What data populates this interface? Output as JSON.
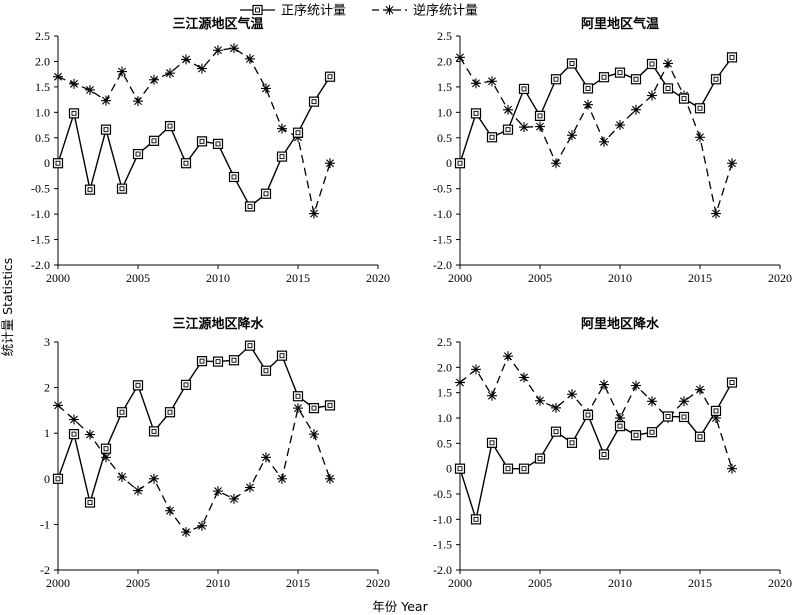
{
  "legend": {
    "forward_label": "正序统计量",
    "backward_label": "逆序统计量"
  },
  "axes": {
    "xlabel": "年份 Year",
    "ylabel": "统计量 Statistics"
  },
  "chart_data": [
    {
      "type": "line",
      "title": "三江源地区气温",
      "xlim": [
        2000,
        2020
      ],
      "ylim": [
        -2.0,
        2.5
      ],
      "xticks": [
        2000,
        2005,
        2010,
        2015,
        2020
      ],
      "yticks": [
        -2.0,
        -1.5,
        -1.0,
        -0.5,
        0,
        0.5,
        1.0,
        1.5,
        2.0,
        2.5
      ],
      "ytick_labels": [
        "-2.0",
        "-1.5",
        "-1.0",
        "-0.5",
        "0",
        "0.5",
        "1.0",
        "1.5",
        "2.0",
        "2.5"
      ],
      "x": [
        2000,
        2001,
        2002,
        2003,
        2004,
        2005,
        2006,
        2007,
        2008,
        2009,
        2010,
        2011,
        2012,
        2013,
        2014,
        2015,
        2016,
        2017
      ],
      "series": [
        {
          "name": "正序统计量",
          "values": [
            0,
            0.98,
            -0.52,
            0.66,
            -0.5,
            0.18,
            0.44,
            0.73,
            0,
            0.43,
            0.38,
            -0.27,
            -0.85,
            -0.6,
            0.13,
            0.6,
            1.21,
            1.7
          ]
        },
        {
          "name": "逆序统计量",
          "values": [
            1.7,
            1.56,
            1.44,
            1.23,
            1.8,
            1.22,
            1.64,
            1.77,
            2.04,
            1.86,
            2.22,
            2.26,
            2.05,
            1.47,
            0.68,
            0.51,
            -0.99,
            0
          ]
        }
      ]
    },
    {
      "type": "line",
      "title": "阿里地区气温",
      "xlim": [
        2000,
        2020
      ],
      "ylim": [
        -2.0,
        2.5
      ],
      "xticks": [
        2000,
        2005,
        2010,
        2015,
        2020
      ],
      "yticks": [
        -2.0,
        -1.5,
        -1.0,
        -0.5,
        0,
        0.5,
        1.0,
        1.5,
        2.0,
        2.5
      ],
      "ytick_labels": [
        "-2.0",
        "-1.5",
        "-1.0",
        "-0.5",
        "0",
        "0.5",
        "1.0",
        "1.5",
        "2.0",
        "2.5"
      ],
      "x": [
        2000,
        2001,
        2002,
        2003,
        2004,
        2005,
        2006,
        2007,
        2008,
        2009,
        2010,
        2011,
        2012,
        2013,
        2014,
        2015,
        2016,
        2017
      ],
      "series": [
        {
          "name": "正序统计量",
          "values": [
            0,
            0.98,
            0.51,
            0.66,
            1.46,
            0.93,
            1.65,
            1.96,
            1.47,
            1.69,
            1.78,
            1.65,
            1.95,
            1.47,
            1.27,
            1.08,
            1.65,
            2.08
          ]
        },
        {
          "name": "逆序统计量",
          "values": [
            2.08,
            1.57,
            1.61,
            1.05,
            0.71,
            0.72,
            0,
            0.55,
            1.15,
            0.42,
            0.75,
            1.05,
            1.33,
            1.96,
            1.33,
            0.51,
            -0.99,
            0
          ]
        }
      ]
    },
    {
      "type": "line",
      "title": "三江源地区降水",
      "xlim": [
        2000,
        2020
      ],
      "ylim": [
        -2,
        3
      ],
      "xticks": [
        2000,
        2005,
        2010,
        2015,
        2020
      ],
      "yticks": [
        -2,
        -1,
        0,
        1,
        2,
        3
      ],
      "ytick_labels": [
        "-2",
        "-1",
        "0",
        "1",
        "2",
        "3"
      ],
      "x": [
        2000,
        2001,
        2002,
        2003,
        2004,
        2005,
        2006,
        2007,
        2008,
        2009,
        2010,
        2011,
        2012,
        2013,
        2014,
        2015,
        2016,
        2017
      ],
      "series": [
        {
          "name": "正序统计量",
          "values": [
            0,
            0.98,
            -0.52,
            0.66,
            1.46,
            2.05,
            1.04,
            1.46,
            2.06,
            2.58,
            2.57,
            2.6,
            2.92,
            2.37,
            2.7,
            1.81,
            1.55,
            1.61
          ]
        },
        {
          "name": "逆序统计量",
          "values": [
            1.61,
            1.3,
            0.97,
            0.47,
            0.04,
            -0.26,
            0,
            -0.7,
            -1.17,
            -1.03,
            -0.27,
            -0.44,
            -0.19,
            0.47,
            0,
            1.55,
            0.98,
            0
          ]
        }
      ]
    },
    {
      "type": "line",
      "title": "阿里地区降水",
      "xlim": [
        2000,
        2020
      ],
      "ylim": [
        -2.0,
        2.5
      ],
      "xticks": [
        2000,
        2005,
        2010,
        2015,
        2020
      ],
      "yticks": [
        -2.0,
        -1.5,
        -1.0,
        -0.5,
        0,
        0.5,
        1.0,
        1.5,
        2.0,
        2.5
      ],
      "ytick_labels": [
        "-2.0",
        "-1.5",
        "-1.0",
        "-0.5",
        "0",
        "0.5",
        "1.0",
        "1.5",
        "2.0",
        "2.5"
      ],
      "x": [
        2000,
        2001,
        2002,
        2003,
        2004,
        2005,
        2006,
        2007,
        2008,
        2009,
        2010,
        2011,
        2012,
        2013,
        2014,
        2015,
        2016,
        2017
      ],
      "series": [
        {
          "name": "正序统计量",
          "values": [
            0,
            -1.0,
            0.51,
            0,
            0,
            0.2,
            0.73,
            0.51,
            1.06,
            0.28,
            0.84,
            0.66,
            0.72,
            1.03,
            1.02,
            0.63,
            1.14,
            1.7
          ]
        },
        {
          "name": "逆序统计量",
          "values": [
            1.7,
            1.96,
            1.44,
            2.22,
            1.8,
            1.34,
            1.2,
            1.47,
            1.1,
            1.66,
            1.0,
            1.64,
            1.33,
            1.0,
            1.33,
            1.56,
            1.0,
            0
          ]
        }
      ]
    }
  ]
}
